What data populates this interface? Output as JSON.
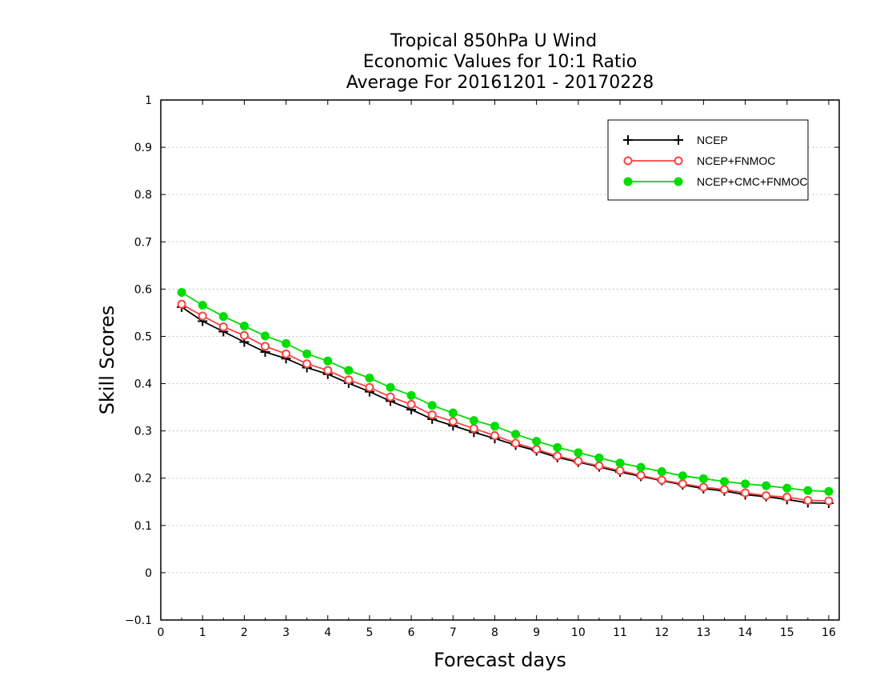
{
  "chart_data": {
    "type": "line",
    "title": [
      "Tropical 850hPa U Wind",
      "Economic Values for 10:1 Ratio",
      "Average For 20161201 - 20170228"
    ],
    "xlabel": "Forecast days",
    "ylabel": "Skill Scores",
    "xlim": [
      0,
      16.25
    ],
    "ylim": [
      -0.1,
      1
    ],
    "xticks": [
      "0",
      "1",
      "2",
      "3",
      "4",
      "5",
      "6",
      "7",
      "8",
      "9",
      "10",
      "11",
      "12",
      "13",
      "14",
      "15",
      "16"
    ],
    "yticks": [
      "-0.1",
      "0",
      "0.1",
      "0.2",
      "0.3",
      "0.4",
      "0.5",
      "0.6",
      "0.7",
      "0.8",
      "0.9",
      "1"
    ],
    "grid": "horizontal dotted",
    "legend_position": "top-right",
    "x": [
      0.5,
      1,
      1.5,
      2,
      2.5,
      3,
      3.5,
      4,
      4.5,
      5,
      5.5,
      6,
      6.5,
      7,
      7.5,
      8,
      8.5,
      9,
      9.5,
      10,
      10.5,
      11,
      11.5,
      12,
      12.5,
      13,
      13.5,
      14,
      14.5,
      15,
      15.5,
      16
    ],
    "series": [
      {
        "name": "NCEP",
        "color": "#000000",
        "marker": "plus",
        "values": [
          0.562,
          0.532,
          0.51,
          0.488,
          0.467,
          0.453,
          0.434,
          0.42,
          0.401,
          0.383,
          0.363,
          0.345,
          0.325,
          0.311,
          0.297,
          0.284,
          0.27,
          0.258,
          0.244,
          0.234,
          0.224,
          0.213,
          0.204,
          0.195,
          0.186,
          0.178,
          0.173,
          0.165,
          0.161,
          0.155,
          0.148,
          0.147
        ]
      },
      {
        "name": "NCEP+FNMOC",
        "color": "#ff4040",
        "marker": "open-circle",
        "values": [
          0.568,
          0.543,
          0.52,
          0.502,
          0.479,
          0.463,
          0.442,
          0.428,
          0.408,
          0.392,
          0.372,
          0.356,
          0.334,
          0.32,
          0.305,
          0.29,
          0.274,
          0.261,
          0.247,
          0.236,
          0.226,
          0.216,
          0.206,
          0.196,
          0.188,
          0.181,
          0.176,
          0.169,
          0.163,
          0.16,
          0.153,
          0.152
        ]
      },
      {
        "name": "NCEP+CMC+FNMOC",
        "color": "#00dd00",
        "marker": "filled-circle",
        "values": [
          0.593,
          0.566,
          0.542,
          0.522,
          0.501,
          0.485,
          0.463,
          0.448,
          0.428,
          0.412,
          0.392,
          0.375,
          0.354,
          0.338,
          0.322,
          0.31,
          0.293,
          0.278,
          0.265,
          0.254,
          0.243,
          0.232,
          0.223,
          0.214,
          0.205,
          0.199,
          0.193,
          0.188,
          0.184,
          0.179,
          0.174,
          0.172
        ]
      }
    ]
  }
}
